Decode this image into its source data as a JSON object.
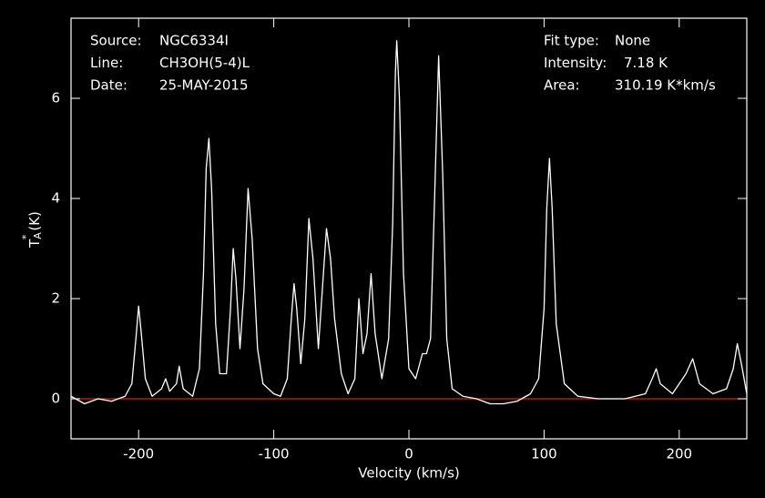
{
  "chart_data": {
    "type": "line",
    "x_label": "Velocity (km/s)",
    "y_label": {
      "symbol": "T",
      "sub": "A",
      "sup": "*",
      "unit": "(K)"
    },
    "annotations_left": [
      {
        "label": "Source:",
        "value": "NGC6334I"
      },
      {
        "label": "Line:",
        "value": "CH3OH(5-4)L"
      },
      {
        "label": "Date:",
        "value": "25-MAY-2015"
      }
    ],
    "annotations_right": [
      {
        "label": "Fit type:",
        "value": "None"
      },
      {
        "label": "Intensity:",
        "value": "7.18 K"
      },
      {
        "label": "Area:",
        "value": "310.19 K*km/s"
      }
    ],
    "xlim": [
      -250,
      250
    ],
    "ylim": [
      -0.8,
      7.6
    ],
    "xticks": [
      -200,
      -100,
      0,
      100,
      200
    ],
    "yticks": [
      0,
      2,
      4,
      6
    ],
    "baseline": 0,
    "baseline_color": "#d02020",
    "axis_color": "#ffffff",
    "series": [
      {
        "color": "#ffffff",
        "x": [
          -250,
          -240,
          -230,
          -220,
          -210,
          -205,
          -202,
          -200,
          -198,
          -195,
          -190,
          -183,
          -180,
          -177,
          -172,
          -170,
          -167,
          -160,
          -155,
          -152,
          -150,
          -148,
          -146,
          -143,
          -140,
          -135,
          -132,
          -130,
          -128,
          -125,
          -122,
          -119,
          -116,
          -112,
          -108,
          -100,
          -95,
          -90,
          -87,
          -85,
          -83,
          -80,
          -77,
          -74,
          -71,
          -67,
          -64,
          -61,
          -58,
          -55,
          -50,
          -45,
          -40,
          -37,
          -34,
          -31,
          -28,
          -25,
          -20,
          -15,
          -12,
          -10,
          -9,
          -7,
          -4,
          0,
          5,
          10,
          13,
          16,
          19,
          22,
          25,
          28,
          32,
          40,
          50,
          60,
          70,
          80,
          90,
          96,
          100,
          102,
          104,
          106,
          109,
          115,
          125,
          140,
          160,
          175,
          180,
          183,
          186,
          195,
          205,
          210,
          215,
          225,
          235,
          240,
          243,
          246,
          250
        ],
        "values": [
          0.05,
          -0.1,
          0.0,
          -0.05,
          0.05,
          0.3,
          1.2,
          1.85,
          1.3,
          0.4,
          0.05,
          0.2,
          0.4,
          0.15,
          0.3,
          0.65,
          0.2,
          0.05,
          0.6,
          2.5,
          4.6,
          5.2,
          4.2,
          1.5,
          0.5,
          0.5,
          1.8,
          3.0,
          2.4,
          1.0,
          2.2,
          4.2,
          3.2,
          1.0,
          0.3,
          0.1,
          0.05,
          0.4,
          1.6,
          2.3,
          1.8,
          0.7,
          1.6,
          3.6,
          2.8,
          1.0,
          2.2,
          3.4,
          2.8,
          1.6,
          0.5,
          0.1,
          0.4,
          2.0,
          0.9,
          1.3,
          2.5,
          1.3,
          0.4,
          1.2,
          3.5,
          6.5,
          7.15,
          6.0,
          2.5,
          0.6,
          0.4,
          0.9,
          0.9,
          1.2,
          4.0,
          6.85,
          4.5,
          1.2,
          0.2,
          0.05,
          0.0,
          -0.1,
          -0.1,
          -0.05,
          0.1,
          0.4,
          1.8,
          3.8,
          4.8,
          3.8,
          1.5,
          0.3,
          0.05,
          0.0,
          0.0,
          0.1,
          0.4,
          0.6,
          0.3,
          0.1,
          0.5,
          0.8,
          0.3,
          0.1,
          0.2,
          0.6,
          1.1,
          0.7,
          0.1
        ]
      }
    ]
  }
}
